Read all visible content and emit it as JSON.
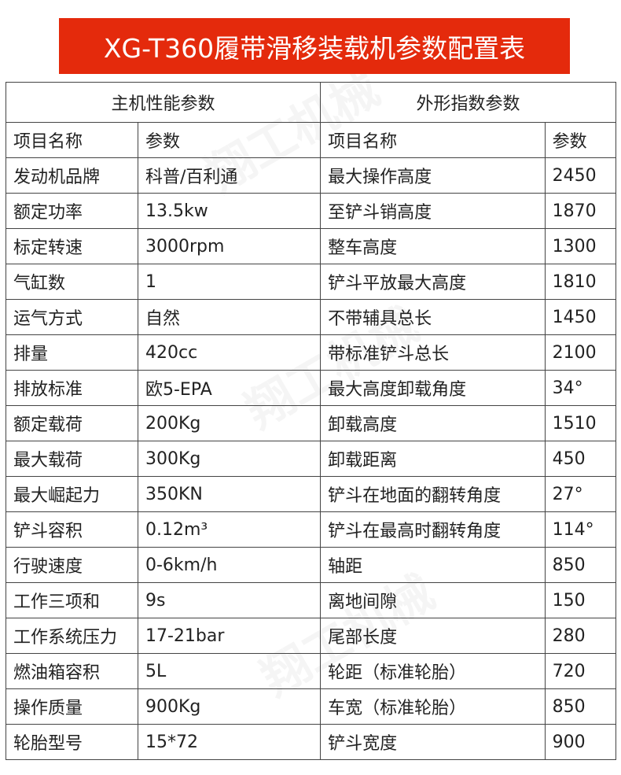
{
  "title": "XG-T360履带滑移装载机参数配置表",
  "sections": [
    "主机性能参数",
    "外形指数参数"
  ],
  "columns": [
    "项目名称",
    "参数",
    "项目名称",
    "参数"
  ],
  "rows": [
    [
      "发动机品牌",
      "科普/百利通",
      "最大操作高度",
      "2450"
    ],
    [
      "额定功率",
      "13.5kw",
      "至铲斗销高度",
      "1870"
    ],
    [
      "标定转速",
      "3000rpm",
      "整车高度",
      "1300"
    ],
    [
      "气缸数",
      "1",
      "铲斗平放最大高度",
      "1810"
    ],
    [
      "运气方式",
      "自然",
      "不带辅具总长",
      "1450"
    ],
    [
      "排量",
      "420cc",
      "带标准铲斗总长",
      "2100"
    ],
    [
      "排放标准",
      "欧5-EPA",
      "最大高度卸载角度",
      "34°"
    ],
    [
      "额定载荷",
      "200Kg",
      "卸载高度",
      "1510"
    ],
    [
      "最大载荷",
      "300Kg",
      "卸载距离",
      "450"
    ],
    [
      "最大崛起力",
      "350KN",
      "铲斗在地面的翻转角度",
      "27°"
    ],
    [
      "铲斗容积",
      "0.12m³",
      "铲斗在最高时翻转角度",
      "114°"
    ],
    [
      "行驶速度",
      "0-6km/h",
      "轴距",
      "850"
    ],
    [
      "工作三项和",
      "9s",
      "离地间隙",
      "150"
    ],
    [
      "工作系统压力",
      "17-21bar",
      "尾部长度",
      "280"
    ],
    [
      "燃油箱容积",
      "5L",
      "轮距（标准轮胎）",
      "720"
    ],
    [
      "操作质量",
      "900Kg",
      "车宽（标准轮胎）",
      "850"
    ],
    [
      "轮胎型号",
      "15*72",
      "铲斗宽度",
      "900"
    ]
  ],
  "watermark": "翔工机械 XIANGGONG",
  "colors": {
    "banner": "#e42a0c",
    "border": "#444444"
  }
}
